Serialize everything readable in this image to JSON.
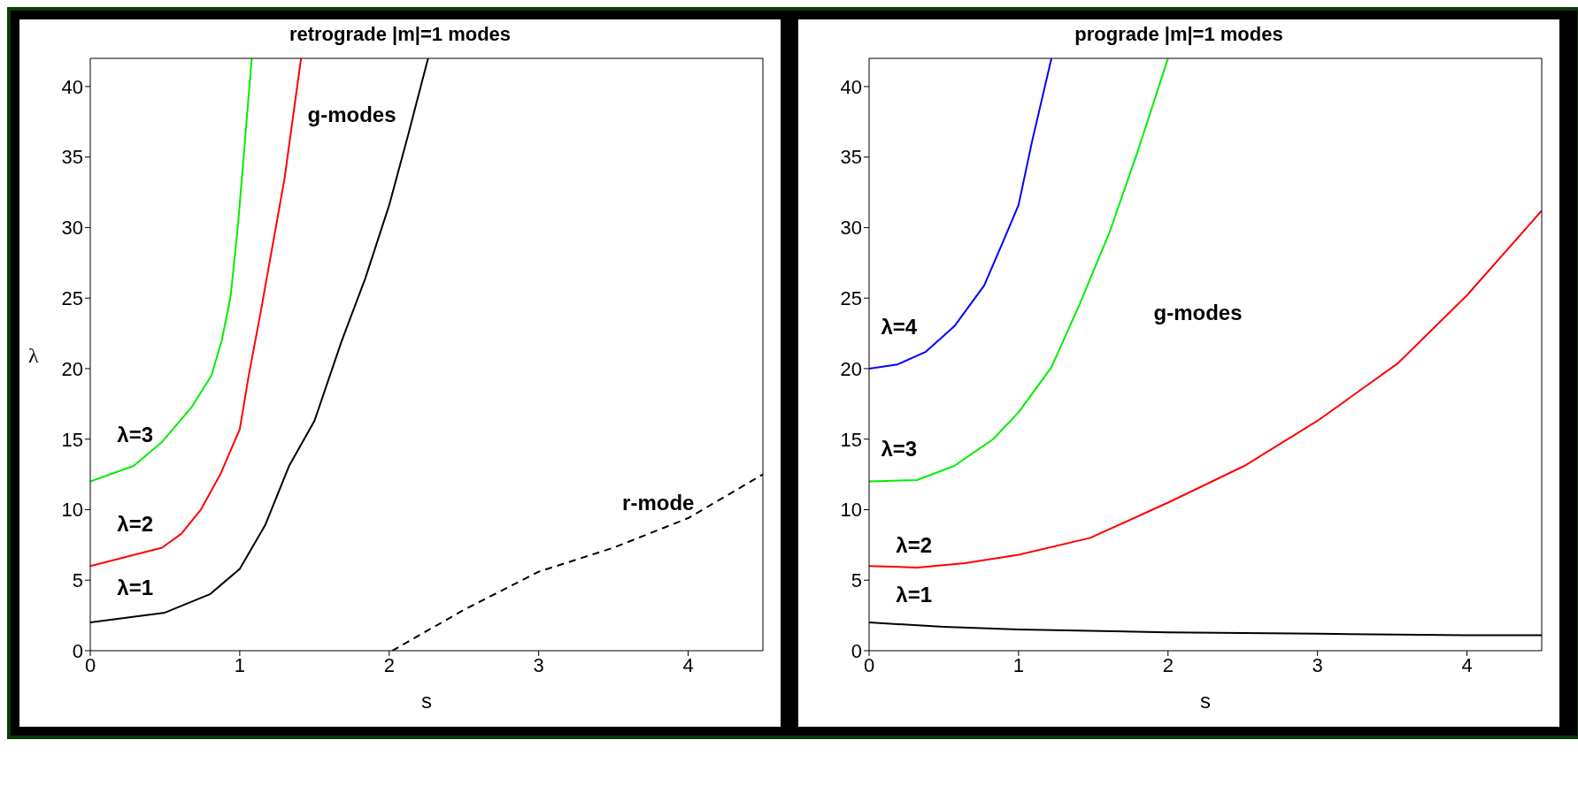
{
  "chart_data": [
    {
      "type": "line",
      "title": "retrograde |m|=1 modes",
      "xlabel": "s",
      "ylabel": "λ",
      "xlim": [
        0,
        4.5
      ],
      "ylim": [
        0,
        42
      ],
      "xticks": [
        0,
        1,
        2,
        3,
        4
      ],
      "yticks": [
        0,
        5,
        10,
        15,
        20,
        25,
        30,
        35,
        40
      ],
      "grid": false,
      "legend": false,
      "marker": "none",
      "line_style": "solid",
      "series": [
        {
          "color": "#000000",
          "x": [
            0,
            0.5,
            0.8,
            1.0,
            1.17,
            1.33,
            1.5,
            1.68,
            1.84,
            2.0,
            2.13,
            2.26
          ],
          "values": [
            2,
            2.7,
            4,
            5.8,
            8.9,
            13.1,
            16.3,
            21.9,
            26.4,
            31.6,
            36.7,
            42
          ]
        },
        {
          "color": "#ff0000",
          "x": [
            0,
            0.48,
            0.61,
            0.74,
            0.87,
            1.0,
            1.06,
            1.14,
            1.3,
            1.41
          ],
          "values": [
            6,
            7.3,
            8.3,
            10,
            12.5,
            15.7,
            19.5,
            24,
            33.5,
            42
          ]
        },
        {
          "color": "#00ee00",
          "x": [
            0,
            0.29,
            0.48,
            0.68,
            0.81,
            0.88,
            0.94,
            0.99,
            1.03,
            1.08
          ],
          "values": [
            12,
            13.1,
            14.8,
            17.3,
            19.5,
            22,
            25.2,
            30.4,
            35.5,
            42
          ]
        },
        {
          "color": "#000000",
          "line_style": "dashed",
          "x": [
            2.02,
            2.5,
            3.0,
            3.5,
            4.0,
            4.5
          ],
          "values": [
            0,
            2.9,
            5.6,
            7.3,
            9.4,
            12.5
          ]
        }
      ],
      "annotations": [
        "g-modes",
        "r-mode",
        "λ=3",
        "λ=2",
        "λ=1"
      ]
    },
    {
      "type": "line",
      "title": "prograde |m|=1 modes",
      "xlabel": "s",
      "xlim": [
        0,
        4.5
      ],
      "ylim": [
        0,
        42
      ],
      "xticks": [
        0,
        1,
        2,
        3,
        4
      ],
      "yticks": [
        0,
        5,
        10,
        15,
        20,
        25,
        30,
        35,
        40
      ],
      "grid": false,
      "legend": false,
      "marker": "none",
      "line_style": "solid",
      "series": [
        {
          "color": "#0000ff",
          "x": [
            0,
            0.19,
            0.38,
            0.57,
            0.77,
            0.9,
            1.0,
            1.09,
            1.22
          ],
          "values": [
            20,
            20.3,
            21.2,
            23,
            25.9,
            29.1,
            31.6,
            36.1,
            42
          ]
        },
        {
          "color": "#00ee00",
          "x": [
            0,
            0.32,
            0.57,
            0.83,
            1.0,
            1.22,
            1.41,
            1.61,
            1.8,
            2.0
          ],
          "values": [
            12,
            12.1,
            13.1,
            15,
            16.9,
            20.1,
            24.6,
            29.7,
            35.5,
            42
          ]
        },
        {
          "color": "#ff0000",
          "x": [
            0,
            0.32,
            0.64,
            1.0,
            1.48,
            2.0,
            2.51,
            3.0,
            3.54,
            4.0,
            4.5
          ],
          "values": [
            6,
            5.9,
            6.2,
            6.8,
            8,
            10.5,
            13.1,
            16.3,
            20.4,
            25.2,
            31.2
          ]
        },
        {
          "color": "#000000",
          "x": [
            0,
            0.5,
            1,
            2,
            3,
            4,
            4.5
          ],
          "values": [
            2,
            1.7,
            1.5,
            1.3,
            1.2,
            1.1,
            1.1
          ]
        }
      ],
      "annotations": [
        "λ=4",
        "λ=3",
        "λ=2",
        "λ=1",
        "g-modes"
      ]
    }
  ]
}
